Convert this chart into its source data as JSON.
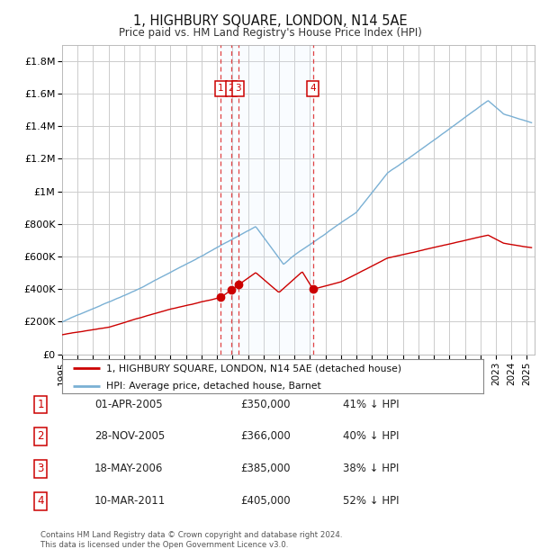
{
  "title": "1, HIGHBURY SQUARE, LONDON, N14 5AE",
  "subtitle": "Price paid vs. HM Land Registry's House Price Index (HPI)",
  "background_color": "#ffffff",
  "grid_color": "#cccccc",
  "plot_bg_color": "#ffffff",
  "red_line_color": "#cc0000",
  "blue_line_color": "#7ab0d4",
  "shade_color": "#ddeeff",
  "transactions": [
    {
      "num": 1,
      "date": "01-APR-2005",
      "price": 350000,
      "pct": "41%",
      "dir": "↓",
      "x_year": 2005.25
    },
    {
      "num": 2,
      "date": "28-NOV-2005",
      "price": 366000,
      "pct": "40%",
      "dir": "↓",
      "x_year": 2005.92
    },
    {
      "num": 3,
      "date": "18-MAY-2006",
      "price": 385000,
      "pct": "38%",
      "dir": "↓",
      "x_year": 2006.38
    },
    {
      "num": 4,
      "date": "10-MAR-2011",
      "price": 405000,
      "pct": "52%",
      "dir": "↓",
      "x_year": 2011.19
    }
  ],
  "legend_property": "1, HIGHBURY SQUARE, LONDON, N14 5AE (detached house)",
  "legend_hpi": "HPI: Average price, detached house, Barnet",
  "footer": "Contains HM Land Registry data © Crown copyright and database right 2024.\nThis data is licensed under the Open Government Licence v3.0.",
  "ylim": [
    0,
    1900000
  ],
  "xlim_start": 1995.0,
  "xlim_end": 2025.5,
  "yticks": [
    0,
    200000,
    400000,
    600000,
    800000,
    1000000,
    1200000,
    1400000,
    1600000,
    1800000
  ],
  "ytick_labels": [
    "£0",
    "£200K",
    "£400K",
    "£600K",
    "£800K",
    "£1M",
    "£1.2M",
    "£1.4M",
    "£1.6M",
    "£1.8M"
  ],
  "xtick_years": [
    1995,
    1996,
    1997,
    1998,
    1999,
    2000,
    2001,
    2002,
    2003,
    2004,
    2005,
    2006,
    2007,
    2008,
    2009,
    2010,
    2011,
    2012,
    2013,
    2014,
    2015,
    2016,
    2017,
    2018,
    2019,
    2020,
    2021,
    2022,
    2023,
    2024,
    2025
  ]
}
